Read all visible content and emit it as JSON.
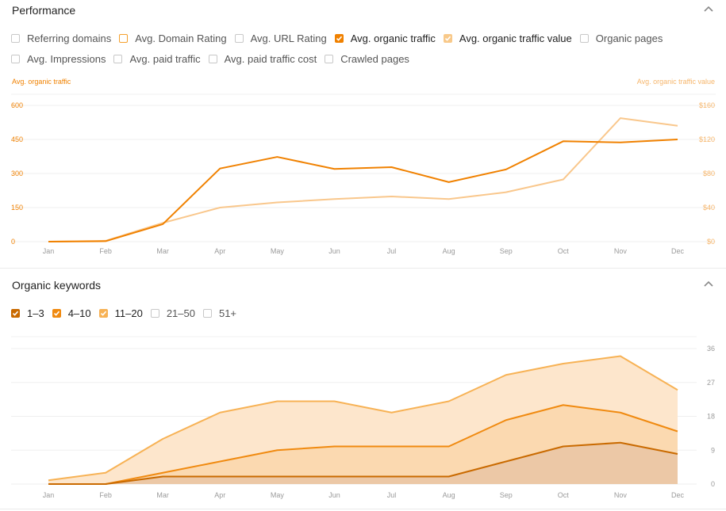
{
  "performance": {
    "title": "Performance",
    "options_row1": [
      {
        "label": "Referring domains",
        "state": "off",
        "color": ""
      },
      {
        "label": "Avg. Domain Rating",
        "state": "hollow",
        "color": "#f5a02c"
      },
      {
        "label": "Avg. URL Rating",
        "state": "off",
        "color": ""
      },
      {
        "label": "Avg. organic traffic",
        "state": "checked",
        "color": "#f08100"
      },
      {
        "label": "Avg. organic traffic value",
        "state": "checked",
        "color": "#f8c98a"
      },
      {
        "label": "Organic pages",
        "state": "off",
        "color": ""
      }
    ],
    "options_row2": [
      {
        "label": "Avg. Impressions",
        "state": "off",
        "color": ""
      },
      {
        "label": "Avg. paid traffic",
        "state": "off",
        "color": ""
      },
      {
        "label": "Avg. paid traffic cost",
        "state": "off",
        "color": ""
      },
      {
        "label": "Crawled pages",
        "state": "off",
        "color": ""
      }
    ],
    "left_axis_label": "Avg. organic traffic",
    "right_axis_label": "Avg. organic traffic value"
  },
  "keywords": {
    "title": "Organic keywords",
    "options": [
      {
        "label": "1–3",
        "state": "checked",
        "color": "#c96a00"
      },
      {
        "label": "4–10",
        "state": "checked",
        "color": "#f08a10"
      },
      {
        "label": "11–20",
        "state": "checked",
        "color": "#f7b255"
      },
      {
        "label": "21–50",
        "state": "off",
        "color": ""
      },
      {
        "label": "51+",
        "state": "off",
        "color": ""
      }
    ]
  },
  "colors": {
    "traffic": "#f08100",
    "traffic_value": "#f9c78c",
    "kw_1_3": "#c96a00",
    "kw_4_10": "#f08a10",
    "kw_11_20": "#f7b255",
    "left_tick": "#f08100",
    "right_tick": "#f6b56a"
  },
  "chart_data": [
    {
      "type": "line",
      "categories": [
        "Jan",
        "Feb",
        "Mar",
        "Apr",
        "May",
        "Jun",
        "Jul",
        "Aug",
        "Sep",
        "Oct",
        "Nov",
        "Dec"
      ],
      "ylim": [
        0,
        600
      ],
      "y_ticks": [
        "0",
        "150",
        "300",
        "450",
        "600"
      ],
      "y2lim": [
        0,
        160
      ],
      "y2_ticks": [
        "$0",
        "$40",
        "$80",
        "$120",
        "$160"
      ],
      "grid": true,
      "series": [
        {
          "name": "Avg. organic traffic",
          "axis": "left",
          "values": [
            0,
            2,
            77,
            322,
            373,
            320,
            328,
            262,
            318,
            442,
            437,
            450
          ]
        },
        {
          "name": "Avg. organic traffic value",
          "axis": "right",
          "values": [
            0,
            1,
            22,
            40,
            46,
            50,
            53,
            50,
            58,
            73,
            145,
            136
          ]
        }
      ]
    },
    {
      "type": "area",
      "stacked": true,
      "categories": [
        "Jan",
        "Feb",
        "Mar",
        "Apr",
        "May",
        "Jun",
        "Jul",
        "Aug",
        "Sep",
        "Oct",
        "Nov",
        "Dec"
      ],
      "ylim": [
        0,
        36
      ],
      "y_ticks": [
        "0",
        "9",
        "18",
        "27",
        "36"
      ],
      "grid": true,
      "series": [
        {
          "name": "1–3",
          "values": [
            0,
            0,
            2,
            2,
            2,
            2,
            2,
            2,
            6,
            10,
            11,
            8
          ]
        },
        {
          "name": "4–10",
          "values": [
            0,
            0,
            1,
            4,
            7,
            8,
            8,
            8,
            11,
            11,
            8,
            6
          ]
        },
        {
          "name": "11–20",
          "values": [
            1,
            3,
            9,
            13,
            13,
            12,
            9,
            12,
            12,
            11,
            15,
            11
          ]
        }
      ]
    }
  ]
}
